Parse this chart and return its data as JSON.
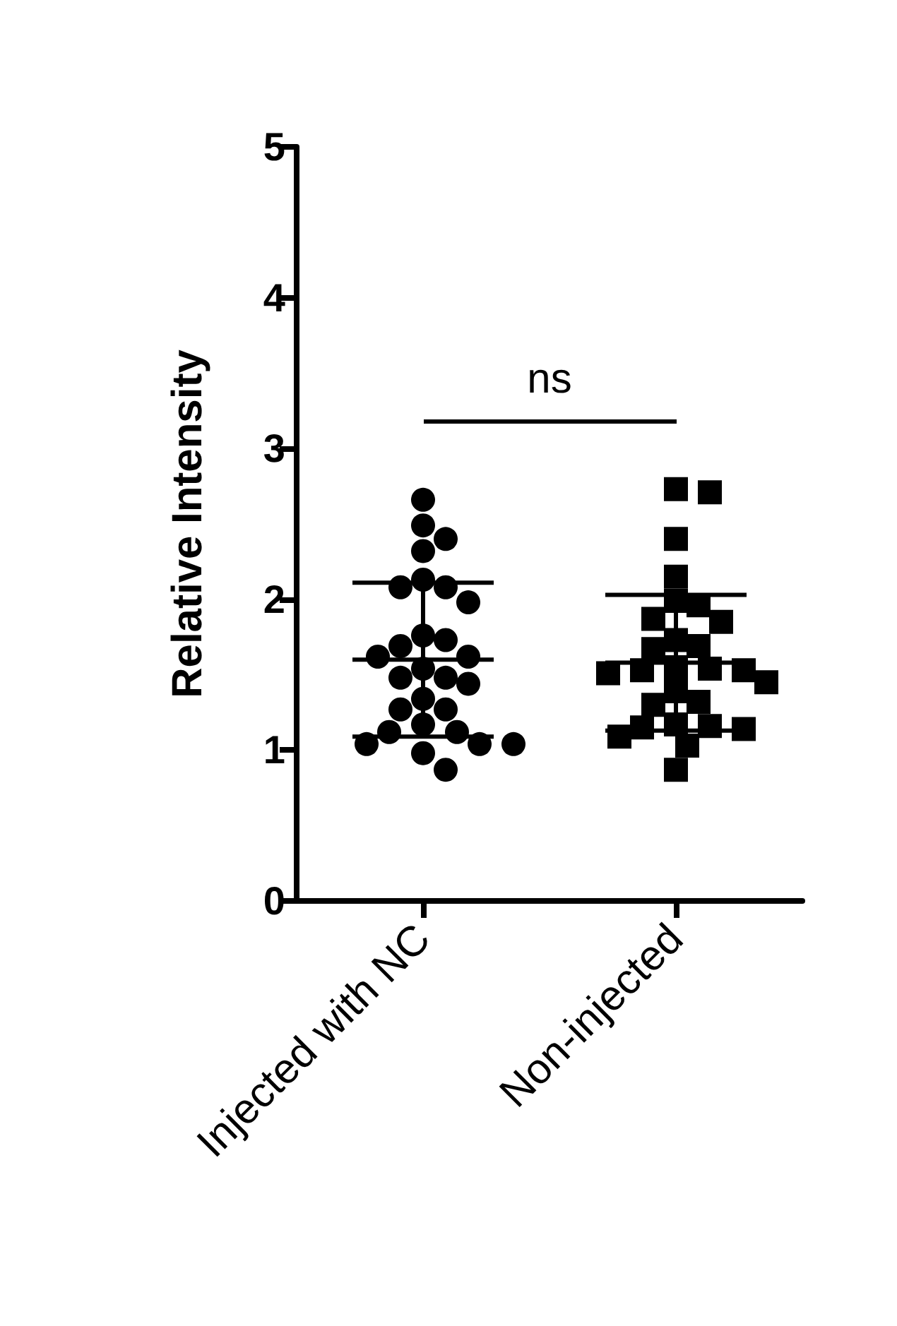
{
  "chart_data": {
    "type": "scatter",
    "ylabel": "Relative Intensity",
    "categories": [
      "Injected with NC",
      "Non-injected"
    ],
    "ylim": [
      0,
      5
    ],
    "yticks": [
      0,
      1,
      2,
      3,
      4,
      5
    ],
    "grid": false,
    "annotations": [
      "ns"
    ],
    "series": [
      {
        "color": "#000000",
        "marker": "circle",
        "x": [
          "Injected with NC",
          "Injected with NC",
          "Injected with NC",
          "Injected with NC",
          "Injected with NC",
          "Injected with NC",
          "Injected with NC",
          "Injected with NC",
          "Injected with NC",
          "Injected with NC",
          "Injected with NC",
          "Injected with NC",
          "Injected with NC",
          "Injected with NC",
          "Injected with NC",
          "Injected with NC",
          "Injected with NC",
          "Injected with NC",
          "Injected with NC",
          "Injected with NC",
          "Injected with NC",
          "Injected with NC",
          "Injected with NC",
          "Injected with NC",
          "Injected with NC",
          "Injected with NC",
          "Injected with NC",
          "Injected with NC"
        ],
        "values": [
          2.66,
          2.49,
          2.4,
          2.32,
          2.13,
          2.08,
          2.08,
          1.98,
          1.76,
          1.73,
          1.69,
          1.62,
          1.62,
          1.54,
          1.48,
          1.48,
          1.44,
          1.34,
          1.27,
          1.27,
          1.17,
          1.12,
          1.12,
          1.04,
          1.04,
          1.04,
          0.98,
          0.87
        ]
      },
      {
        "color": "#000000",
        "marker": "square",
        "x": [
          "Non-injected",
          "Non-injected",
          "Non-injected",
          "Non-injected",
          "Non-injected",
          "Non-injected",
          "Non-injected",
          "Non-injected",
          "Non-injected",
          "Non-injected",
          "Non-injected",
          "Non-injected",
          "Non-injected",
          "Non-injected",
          "Non-injected",
          "Non-injected",
          "Non-injected",
          "Non-injected",
          "Non-injected",
          "Non-injected",
          "Non-injected",
          "Non-injected",
          "Non-injected",
          "Non-injected",
          "Non-injected",
          "Non-injected",
          "Non-injected"
        ],
        "values": [
          2.73,
          2.71,
          2.4,
          2.15,
          1.99,
          1.96,
          1.87,
          1.85,
          1.73,
          1.69,
          1.67,
          1.55,
          1.54,
          1.53,
          1.53,
          1.51,
          1.45,
          1.39,
          1.32,
          1.3,
          1.17,
          1.16,
          1.15,
          1.14,
          1.09,
          1.03,
          0.87
        ]
      },
      {
        "type": "box",
        "color": "#000000",
        "boxes": [
          {
            "low": 1.09,
            "q1": 1.6,
            "median": 1.6,
            "q3": 1.6,
            "high": 2.11
          },
          {
            "low": 1.13,
            "q1": 1.58,
            "median": 1.58,
            "q3": 1.58,
            "high": 2.03
          }
        ]
      }
    ]
  }
}
